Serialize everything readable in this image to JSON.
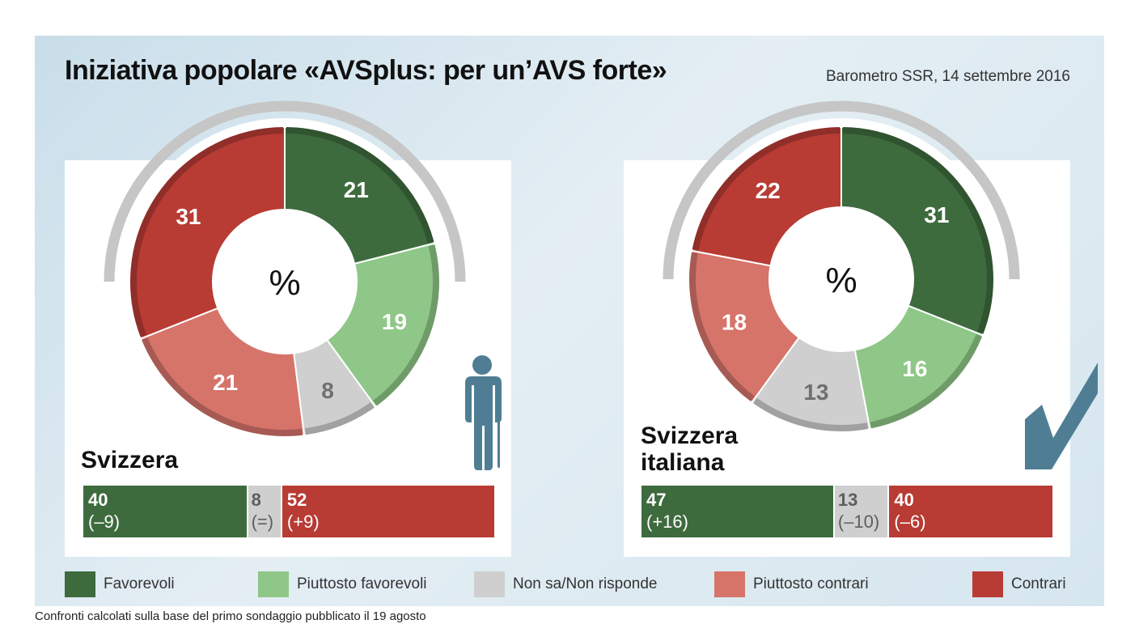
{
  "title": "Iniziativa popolare «AVSplus: per un’AVS forte»",
  "source": "Barometro SSR, 14 settembre 2016",
  "footnote": "Confronti calcolati sulla base del primo sondaggio pubblicato il 19 agosto",
  "center_symbol": "%",
  "colors": {
    "favorevoli": "#3e6b3e",
    "piuttosto_favorevoli": "#8ec787",
    "non_sa": "#cfcfcf",
    "piuttosto_contrari": "#d6746a",
    "contrari": "#b83b34"
  },
  "legend": [
    {
      "key": "favorevoli",
      "label": "Favorevoli"
    },
    {
      "key": "piuttosto_favorevoli",
      "label": "Piuttosto favorevoli"
    },
    {
      "key": "non_sa",
      "label": "Non sa/Non risponde"
    },
    {
      "key": "piuttosto_contrari",
      "label": "Piuttosto contrari"
    },
    {
      "key": "contrari",
      "label": "Contrari"
    }
  ],
  "icons": [
    "elderly-person-icon",
    "checkmark-icon"
  ],
  "chart_data": [
    {
      "type": "pie",
      "region": "Svizzera",
      "categories": [
        "Favorevoli",
        "Piuttosto favorevoli",
        "Non sa/Non risponde",
        "Piuttosto contrari",
        "Contrari"
      ],
      "values": [
        21,
        19,
        8,
        21,
        31
      ],
      "unit": "%",
      "summary": {
        "favorevoli": {
          "value": "40",
          "change": "(–9)"
        },
        "non_sa": {
          "value": "8",
          "change": "(=)"
        },
        "contrari": {
          "value": "52",
          "change": "(+9)"
        }
      }
    },
    {
      "type": "pie",
      "region": "Svizzera italiana",
      "categories": [
        "Favorevoli",
        "Piuttosto favorevoli",
        "Non sa/Non risponde",
        "Piuttosto contrari",
        "Contrari"
      ],
      "values": [
        31,
        16,
        13,
        18,
        22
      ],
      "unit": "%",
      "summary": {
        "favorevoli": {
          "value": "47",
          "change": "(+16)"
        },
        "non_sa": {
          "value": "13",
          "change": "(–10)"
        },
        "contrari": {
          "value": "40",
          "change": "(–6)"
        }
      }
    }
  ]
}
